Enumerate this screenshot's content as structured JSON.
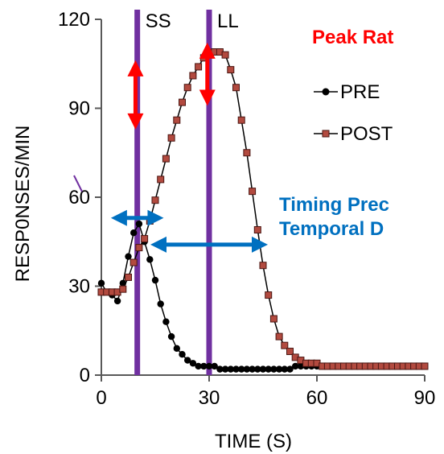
{
  "colors": {
    "pre_line": "#000000",
    "pre_marker": "#000000",
    "post_line": "#000000",
    "post_marker_fill": "#b24a3f",
    "post_marker_stroke": "#4a1612",
    "ss_ll_vertical_lines": "#7030a0",
    "peak_rate_arrow": "#ff0000",
    "timing_arrow": "#0070c0",
    "peak_rate_text": "#ff0000",
    "timing_text": "#0070c0"
  },
  "chart_data": {
    "type": "line",
    "title": "",
    "xlabel": "TIME (S)",
    "ylabel": "RESP0NSES/MIN",
    "xlim": [
      0,
      90
    ],
    "ylim": [
      0,
      120
    ],
    "x_ticks": [
      0,
      30,
      60,
      90
    ],
    "y_ticks": [
      0,
      30,
      60,
      90,
      120
    ],
    "x_tick_labels": [
      "0",
      "30",
      "60",
      "90"
    ],
    "y_tick_labels": [
      "0",
      "30",
      "60",
      "90",
      "120"
    ],
    "grid": false,
    "legend": {
      "placement": "right",
      "entries": [
        "PRE",
        "POST"
      ]
    },
    "vertical_lines": [
      {
        "label": "SS",
        "x": 10
      },
      {
        "label": "LL",
        "x": 30
      }
    ],
    "annotations": {
      "peak_rate_label": "Peak Rat",
      "timing_label_line1": "Timing Prec",
      "timing_label_line2": "Temporal D",
      "peak_arrows": [
        {
          "x": 9.5,
          "y_from": 85,
          "y_to": 104
        },
        {
          "x": 29.5,
          "y_from": 93,
          "y_to": 110
        }
      ],
      "timing_arrows": [
        {
          "y": 53,
          "x_from": 4,
          "x_to": 16
        },
        {
          "y": 44,
          "x_from": 15,
          "x_to": 45
        }
      ]
    },
    "series": [
      {
        "name": "PRE",
        "marker": "circle",
        "x": [
          0,
          1.5,
          3,
          4.5,
          6,
          7.5,
          9,
          10.5,
          12,
          13.5,
          15,
          16.5,
          18,
          19.5,
          21,
          22.5,
          24,
          25.5,
          27,
          28.5,
          30,
          31.5,
          33,
          34.5,
          36,
          37.5,
          39,
          40.5,
          42,
          43.5,
          45,
          46.5,
          48,
          49.5,
          51,
          52.5,
          54,
          55.5,
          57,
          58.5,
          60,
          61.5,
          63,
          64.5,
          66,
          67.5,
          69,
          70.5,
          72,
          73.5,
          75,
          76.5,
          78,
          79.5,
          81,
          82.5,
          84,
          85.5,
          87,
          88.5,
          90
        ],
        "y": [
          31,
          28,
          27,
          25,
          31,
          40,
          48,
          51,
          45,
          39,
          32,
          24,
          18,
          13,
          9,
          7,
          5,
          4,
          3,
          3,
          3,
          3,
          2,
          2,
          2,
          2,
          2,
          2,
          2,
          2,
          2,
          2,
          2,
          2,
          2,
          2,
          3,
          3,
          3,
          3,
          3,
          3,
          3,
          3,
          3,
          3,
          3,
          3,
          3,
          3,
          3,
          3,
          3,
          3,
          3,
          3,
          3,
          3,
          3,
          3,
          3
        ]
      },
      {
        "name": "POST",
        "marker": "square",
        "x": [
          0,
          1.5,
          3,
          4.5,
          6,
          7.5,
          9,
          10.5,
          12,
          13.5,
          15,
          16.5,
          18,
          19.5,
          21,
          22.5,
          24,
          25.5,
          27,
          28.5,
          30,
          31.5,
          33,
          34.5,
          36,
          37.5,
          39,
          40.5,
          42,
          43.5,
          45,
          46.5,
          48,
          49.5,
          51,
          52.5,
          54,
          55.5,
          57,
          58.5,
          60,
          61.5,
          63,
          64.5,
          66,
          67.5,
          69,
          70.5,
          72,
          73.5,
          75,
          76.5,
          78,
          79.5,
          81,
          82.5,
          84,
          85.5,
          87,
          88.5,
          90
        ],
        "y": [
          28,
          28,
          28,
          28,
          29,
          33,
          38,
          43,
          46,
          52,
          59,
          66,
          73,
          80,
          86,
          92,
          97,
          101,
          104,
          107,
          108,
          109,
          109,
          108,
          103,
          97,
          86,
          75,
          62,
          49,
          37,
          27,
          19,
          13,
          10,
          8,
          6,
          5,
          4,
          4,
          4,
          3,
          3,
          3,
          3,
          3,
          3,
          3,
          3,
          3,
          3,
          3,
          3,
          3,
          3,
          3,
          3,
          3,
          3,
          3,
          3
        ]
      }
    ]
  }
}
